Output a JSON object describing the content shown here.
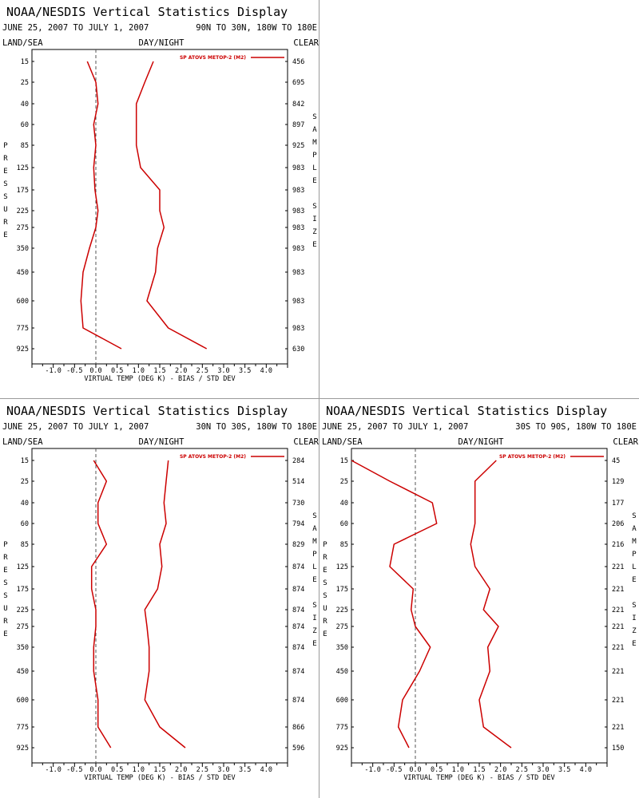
{
  "colors": {
    "series": "#cc0000",
    "axis": "#000000",
    "zero_line": "#555555",
    "divider": "#9a9a9a"
  },
  "chart_data": [
    {
      "type": "line",
      "title": "NOAA/NESDIS Vertical Statistics Display",
      "date_range": "JUNE 25, 2007 TO JULY 1, 2007",
      "region": "90N TO 30N, 180W TO 180E",
      "corner_labels": {
        "left": "LAND/SEA",
        "center": "DAY/NIGHT",
        "right": "CLEAR"
      },
      "left_axis_label": "PRESSURE",
      "right_axis_label": "SAMPLE SIZE",
      "xlabel": "VIRTUAL TEMP (DEG K) - BIAS / STD DEV",
      "xlim": [
        -1.5,
        4.5
      ],
      "x_ticks": [
        "-1.0",
        "-0.5",
        "0.0",
        "0.5",
        "1.0",
        "1.5",
        "2.0",
        "2.5",
        "3.0",
        "3.5",
        "4.0"
      ],
      "pressure_levels": [
        "15",
        "25",
        "40",
        "60",
        "85",
        "125",
        "175",
        "225",
        "275",
        "350",
        "450",
        "600",
        "775",
        "925"
      ],
      "sample_size": [
        "456",
        "695",
        "842",
        "897",
        "925",
        "983",
        "983",
        "983",
        "983",
        "983",
        "983",
        "983",
        "983",
        "630"
      ],
      "legend": "SP ATOVS METOP-2 (M2)",
      "series": [
        {
          "metric": "bias",
          "values": [
            -0.2,
            0.0,
            0.05,
            -0.05,
            0.0,
            -0.05,
            -0.02,
            0.05,
            0.0,
            -0.15,
            -0.3,
            -0.35,
            -0.3,
            0.6
          ]
        },
        {
          "metric": "std_dev",
          "values": [
            1.35,
            1.15,
            0.95,
            0.95,
            0.95,
            1.05,
            1.5,
            1.5,
            1.6,
            1.45,
            1.4,
            1.2,
            1.7,
            2.6
          ]
        }
      ]
    },
    {
      "type": "line",
      "title": "NOAA/NESDIS Vertical Statistics Display",
      "date_range": "JUNE 25, 2007 TO JULY 1, 2007",
      "region": "30N TO 30S, 180W TO 180E",
      "corner_labels": {
        "left": "LAND/SEA",
        "center": "DAY/NIGHT",
        "right": "CLEAR"
      },
      "left_axis_label": "PRESSURE",
      "right_axis_label": "SAMPLE SIZE",
      "xlabel": "VIRTUAL TEMP (DEG K) - BIAS / STD DEV",
      "xlim": [
        -1.5,
        4.5
      ],
      "x_ticks": [
        "-1.0",
        "-0.5",
        "0.0",
        "0.5",
        "1.0",
        "1.5",
        "2.0",
        "2.5",
        "3.0",
        "3.5",
        "4.0"
      ],
      "pressure_levels": [
        "15",
        "25",
        "40",
        "60",
        "85",
        "125",
        "175",
        "225",
        "275",
        "350",
        "450",
        "600",
        "775",
        "925"
      ],
      "sample_size": [
        "284",
        "514",
        "730",
        "794",
        "829",
        "874",
        "874",
        "874",
        "874",
        "874",
        "874",
        "874",
        "866",
        "596"
      ],
      "legend": "SP ATOVS METOP-2 (M2)",
      "series": [
        {
          "metric": "bias",
          "values": [
            -0.05,
            0.25,
            0.05,
            0.05,
            0.25,
            -0.1,
            -0.1,
            0.0,
            0.0,
            -0.05,
            -0.05,
            0.05,
            0.05,
            0.35
          ]
        },
        {
          "metric": "std_dev",
          "values": [
            1.7,
            1.65,
            1.6,
            1.65,
            1.5,
            1.55,
            1.45,
            1.15,
            1.2,
            1.25,
            1.25,
            1.15,
            1.5,
            2.1
          ]
        }
      ]
    },
    {
      "type": "line",
      "title": "NOAA/NESDIS Vertical Statistics Display",
      "date_range": "JUNE 25, 2007 TO JULY 1, 2007",
      "region": "30S TO 90S, 180W TO 180E",
      "corner_labels": {
        "left": "LAND/SEA",
        "center": "DAY/NIGHT",
        "right": "CLEAR"
      },
      "left_axis_label": "PRESSURE",
      "right_axis_label": "SAMPLE SIZE",
      "xlabel": "VIRTUAL TEMP (DEG K) - BIAS / STD DEV",
      "xlim": [
        -1.5,
        4.5
      ],
      "x_ticks": [
        "-1.0",
        "-0.5",
        "0.0",
        "0.5",
        "1.0",
        "1.5",
        "2.0",
        "2.5",
        "3.0",
        "3.5",
        "4.0"
      ],
      "pressure_levels": [
        "15",
        "25",
        "40",
        "60",
        "85",
        "125",
        "175",
        "225",
        "275",
        "350",
        "450",
        "600",
        "775",
        "925"
      ],
      "sample_size": [
        "45",
        "129",
        "177",
        "206",
        "216",
        "221",
        "221",
        "221",
        "221",
        "221",
        "221",
        "221",
        "221",
        "150"
      ],
      "legend": "SP ATOVS METOP-2 (M2)",
      "series": [
        {
          "metric": "bias",
          "values": [
            -1.5,
            -0.6,
            0.4,
            0.5,
            -0.5,
            -0.6,
            -0.05,
            -0.1,
            0.0,
            0.35,
            0.1,
            -0.3,
            -0.4,
            -0.15
          ]
        },
        {
          "metric": "std_dev",
          "values": [
            1.9,
            1.4,
            1.4,
            1.4,
            1.3,
            1.4,
            1.75,
            1.6,
            1.95,
            1.7,
            1.75,
            1.5,
            1.6,
            2.25
          ]
        }
      ]
    }
  ]
}
